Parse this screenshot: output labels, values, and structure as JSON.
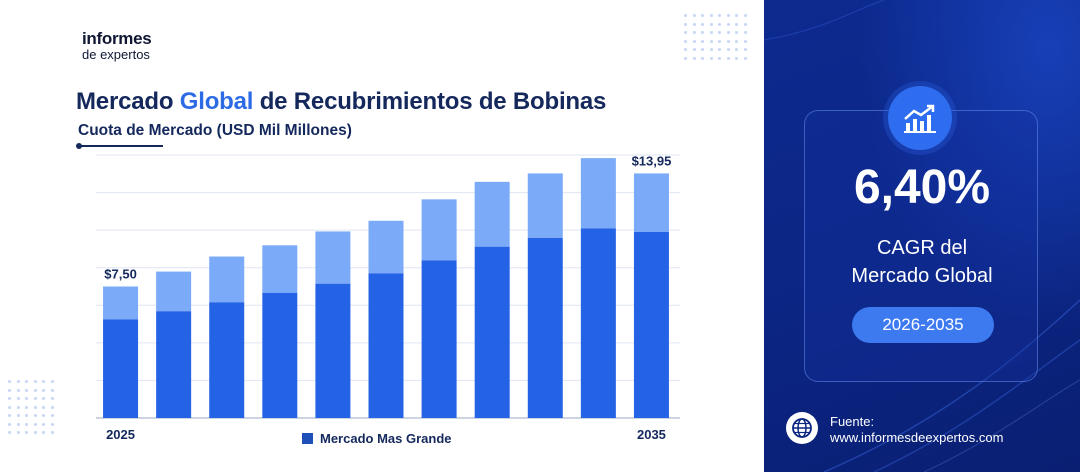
{
  "brand": {
    "line1": "informes",
    "line2": "de expertos"
  },
  "title": {
    "part1": "Mercado ",
    "highlight": "Global",
    "part2": " de Recubrimientos de Bobinas"
  },
  "subtitle": "Cuota de Mercado (USD Mil Millones)",
  "legend": {
    "label": "Mercado Mas Grande"
  },
  "chart_data": {
    "type": "bar",
    "stacked": true,
    "categories": [
      "2025",
      "2026",
      "2027",
      "2028",
      "2029",
      "2030",
      "2031",
      "2032",
      "2033",
      "2034",
      "2035"
    ],
    "x_tick_labels": [
      {
        "index": 0,
        "text": "2025"
      },
      {
        "index": 10,
        "text": "2035"
      }
    ],
    "data_labels": [
      {
        "index": 0,
        "text": "$7,50"
      },
      {
        "index": 10,
        "text": "$13,95"
      }
    ],
    "series": [
      {
        "name": "Mercado Mas Grande",
        "values": [
          5.62,
          6.09,
          6.6,
          7.14,
          7.66,
          8.25,
          8.99,
          9.77,
          10.27,
          10.81,
          10.61
        ],
        "color": "#2563e6"
      },
      {
        "values": [
          1.88,
          2.26,
          2.61,
          2.71,
          2.98,
          3.0,
          3.48,
          3.7,
          3.68,
          4.01,
          3.34
        ],
        "color": "#7aaaf8"
      }
    ],
    "ylim": [
      0,
      15
    ],
    "grid": true,
    "legend_position": "bottom"
  },
  "kpi": {
    "value": "6,40%",
    "label_line1": "CAGR del",
    "label_line2": "Mercado Global",
    "period": "2026-2035"
  },
  "footer": {
    "source_label": "Fuente:",
    "source_url": "www.informesdeexpertos.com"
  },
  "icons": {
    "kpi": "trend-up-chart-icon",
    "source": "globe-icon"
  }
}
